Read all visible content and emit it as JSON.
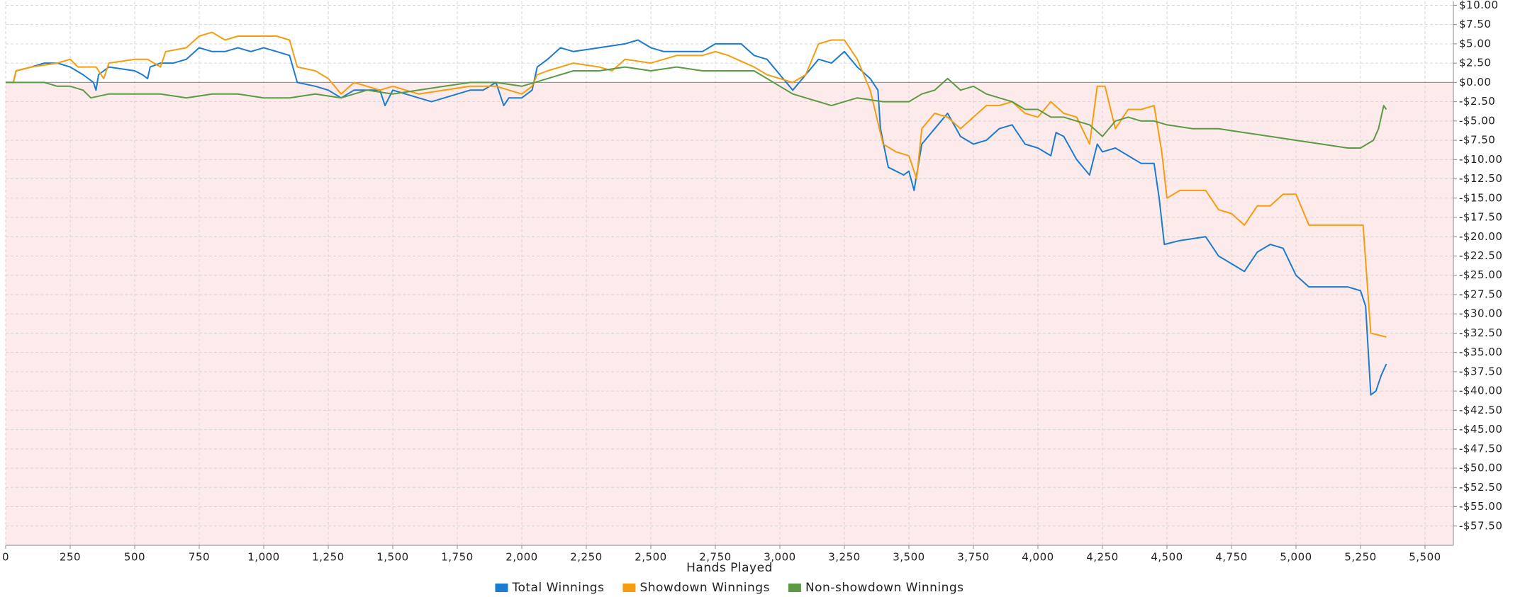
{
  "chart_data": {
    "type": "line",
    "xlabel": "Hands Played",
    "xlim": [
      0,
      5610
    ],
    "xticks": [
      0,
      250,
      500,
      750,
      {
        "value": 1000,
        "label": "1,000"
      },
      {
        "value": 1250,
        "label": "1,250"
      },
      {
        "value": 1500,
        "label": "1,500"
      },
      {
        "value": 1750,
        "label": "1,750"
      },
      {
        "value": 2000,
        "label": "2,000"
      },
      {
        "value": 2250,
        "label": "2,250"
      },
      {
        "value": 2500,
        "label": "2,500"
      },
      {
        "value": 2750,
        "label": "2,750"
      },
      {
        "value": 3000,
        "label": "3,000"
      },
      {
        "value": 3250,
        "label": "3,250"
      },
      {
        "value": 3500,
        "label": "3,500"
      },
      {
        "value": 3750,
        "label": "3,750"
      },
      {
        "value": 4000,
        "label": "4,000"
      },
      {
        "value": 4250,
        "label": "4,250"
      },
      {
        "value": 4500,
        "label": "4,500"
      },
      {
        "value": 4750,
        "label": "4,750"
      },
      {
        "value": 5000,
        "label": "5,000"
      },
      {
        "value": 5250,
        "label": "5,250"
      },
      {
        "value": 5500,
        "label": "5,500"
      }
    ],
    "ylim": [
      -60,
      10.5
    ],
    "yticks": [
      {
        "value": 10,
        "label": "$10.00"
      },
      {
        "value": 7.5,
        "label": "$7.50"
      },
      {
        "value": 5,
        "label": "$5.00"
      },
      {
        "value": 2.5,
        "label": "$2.50"
      },
      {
        "value": 0,
        "label": "$0.00"
      },
      {
        "value": -2.5,
        "label": "-$2.50"
      },
      {
        "value": -5,
        "label": "-$5.00"
      },
      {
        "value": -7.5,
        "label": "-$7.50"
      },
      {
        "value": -10,
        "label": "-$10.00"
      },
      {
        "value": -12.5,
        "label": "-$12.50"
      },
      {
        "value": -15,
        "label": "-$15.00"
      },
      {
        "value": -17.5,
        "label": "-$17.50"
      },
      {
        "value": -20,
        "label": "-$20.00"
      },
      {
        "value": -22.5,
        "label": "-$22.50"
      },
      {
        "value": -25,
        "label": "-$25.00"
      },
      {
        "value": -27.5,
        "label": "-$27.50"
      },
      {
        "value": -30,
        "label": "-$30.00"
      },
      {
        "value": -32.5,
        "label": "-$32.50"
      },
      {
        "value": -35,
        "label": "-$35.00"
      },
      {
        "value": -37.5,
        "label": "-$37.50"
      },
      {
        "value": -40,
        "label": "-$40.00"
      },
      {
        "value": -42.5,
        "label": "-$42.50"
      },
      {
        "value": -45,
        "label": "-$45.00"
      },
      {
        "value": -47.5,
        "label": "-$47.50"
      },
      {
        "value": -50,
        "label": "-$50.00"
      },
      {
        "value": -52.5,
        "label": "-$52.50"
      },
      {
        "value": -55,
        "label": "-$55.00"
      },
      {
        "value": -57.5,
        "label": "-$57.50"
      }
    ],
    "grid": true,
    "legend": "bottom",
    "series": [
      {
        "name": "Total Winnings",
        "color": "#1a7bd0",
        "x": [
          0,
          30,
          40,
          100,
          150,
          200,
          250,
          300,
          340,
          350,
          360,
          400,
          500,
          530,
          550,
          560,
          600,
          650,
          700,
          750,
          800,
          850,
          900,
          950,
          1000,
          1050,
          1100,
          1130,
          1200,
          1250,
          1300,
          1350,
          1450,
          1470,
          1500,
          1600,
          1650,
          1700,
          1800,
          1850,
          1900,
          1930,
          1950,
          2000,
          2040,
          2060,
          2100,
          2150,
          2200,
          2300,
          2400,
          2450,
          2500,
          2550,
          2600,
          2700,
          2750,
          2800,
          2850,
          2900,
          2950,
          3000,
          3050,
          3100,
          3150,
          3200,
          3250,
          3300,
          3350,
          3380,
          3390,
          3420,
          3480,
          3500,
          3520,
          3550,
          3600,
          3650,
          3700,
          3750,
          3800,
          3850,
          3900,
          3950,
          4000,
          4050,
          4070,
          4100,
          4150,
          4200,
          4230,
          4250,
          4300,
          4350,
          4400,
          4450,
          4470,
          4490,
          4550,
          4650,
          4700,
          4750,
          4800,
          4850,
          4900,
          4950,
          5000,
          5050,
          5100,
          5200,
          5250,
          5270,
          5290,
          5310,
          5330,
          5350
        ],
        "values": [
          0,
          0,
          1.5,
          2,
          2.5,
          2.5,
          2,
          1,
          0,
          -1,
          1,
          2,
          1.5,
          1,
          0.5,
          2,
          2.5,
          2.5,
          3,
          4.5,
          4,
          4,
          4.5,
          4,
          4.5,
          4,
          3.5,
          0,
          -0.5,
          -1,
          -2,
          -1,
          -1,
          -3,
          -1,
          -2,
          -2.5,
          -2,
          -1,
          -1,
          0,
          -3,
          -2,
          -2,
          -1,
          2,
          3,
          4.5,
          4,
          4.5,
          5,
          5.5,
          4.5,
          4,
          4,
          4,
          5,
          5,
          5,
          3.5,
          3,
          1,
          -1,
          1,
          3,
          2.5,
          4,
          2,
          0.5,
          -1,
          -6,
          -11,
          -12,
          -11.5,
          -14,
          -8,
          -6,
          -4,
          -7,
          -8,
          -7.5,
          -6,
          -5.5,
          -8,
          -8.5,
          -9.5,
          -6.5,
          -7,
          -10,
          -12,
          -8,
          -9,
          -8.5,
          -9.5,
          -10.5,
          -10.5,
          -15,
          -21,
          -20.5,
          -20,
          -22.5,
          -23.5,
          -24.5,
          -22,
          -21,
          -21.5,
          -25,
          -26.5,
          -26.5,
          -26.5,
          -27,
          -29,
          -40.5,
          -40,
          -38,
          -36.5
        ]
      },
      {
        "name": "Showdown Winnings",
        "color": "#f59d0f",
        "x": [
          0,
          30,
          40,
          100,
          200,
          250,
          280,
          350,
          380,
          400,
          500,
          550,
          600,
          620,
          700,
          750,
          800,
          850,
          900,
          1000,
          1050,
          1100,
          1130,
          1200,
          1250,
          1300,
          1350,
          1450,
          1500,
          1600,
          1700,
          1800,
          1900,
          2000,
          2040,
          2060,
          2100,
          2200,
          2300,
          2350,
          2400,
          2500,
          2600,
          2700,
          2750,
          2800,
          2900,
          2950,
          3050,
          3100,
          3150,
          3200,
          3250,
          3280,
          3300,
          3350,
          3400,
          3450,
          3500,
          3530,
          3550,
          3600,
          3650,
          3700,
          3750,
          3800,
          3850,
          3900,
          3950,
          4000,
          4050,
          4100,
          4150,
          4200,
          4230,
          4260,
          4300,
          4350,
          4400,
          4450,
          4480,
          4500,
          4550,
          4650,
          4700,
          4750,
          4800,
          4850,
          4900,
          4950,
          5000,
          5050,
          5100,
          5200,
          5260,
          5290,
          5350
        ],
        "values": [
          0,
          0,
          1.5,
          2,
          2.5,
          3,
          2,
          2,
          0.5,
          2.5,
          3,
          3,
          2,
          4,
          4.5,
          6,
          6.5,
          5.5,
          6,
          6,
          6,
          5.5,
          2,
          1.5,
          0.5,
          -1.5,
          0,
          -1,
          -0.5,
          -1.5,
          -1,
          -0.5,
          -0.5,
          -1.5,
          -0.5,
          1,
          1.5,
          2.5,
          2,
          1.5,
          3,
          2.5,
          3.5,
          3.5,
          4,
          3.5,
          2,
          1,
          0,
          1,
          5,
          5.5,
          5.5,
          4,
          3,
          -1,
          -8,
          -9,
          -9.5,
          -12.5,
          -6,
          -4,
          -4.5,
          -6,
          -4.5,
          -3,
          -3,
          -2.5,
          -4,
          -4.5,
          -2.5,
          -4,
          -4.5,
          -8,
          -0.5,
          -0.5,
          -6,
          -3.5,
          -3.5,
          -3,
          -9,
          -15,
          -14,
          -14,
          -16.5,
          -17,
          -18.5,
          -16,
          -16,
          -14.5,
          -14.5,
          -18.5,
          -18.5,
          -18.5,
          -18.5,
          -32.5,
          -33
        ]
      },
      {
        "name": "Non-showdown Winnings",
        "color": "#5b9a45",
        "x": [
          0,
          100,
          150,
          200,
          250,
          300,
          330,
          400,
          500,
          600,
          700,
          800,
          900,
          1000,
          1100,
          1200,
          1300,
          1400,
          1500,
          1600,
          1700,
          1800,
          1900,
          2000,
          2050,
          2100,
          2200,
          2300,
          2400,
          2500,
          2600,
          2700,
          2800,
          2900,
          2950,
          3000,
          3050,
          3100,
          3150,
          3200,
          3250,
          3300,
          3400,
          3500,
          3550,
          3600,
          3650,
          3700,
          3750,
          3800,
          3850,
          3900,
          3950,
          4000,
          4050,
          4100,
          4150,
          4200,
          4250,
          4300,
          4350,
          4400,
          4450,
          4500,
          4600,
          4700,
          4800,
          4900,
          5000,
          5100,
          5200,
          5250,
          5300,
          5320,
          5340,
          5350
        ],
        "values": [
          0,
          0,
          0,
          -0.5,
          -0.5,
          -1,
          -2,
          -1.5,
          -1.5,
          -1.5,
          -2,
          -1.5,
          -1.5,
          -2,
          -2,
          -1.5,
          -2,
          -1,
          -1.5,
          -1,
          -0.5,
          0,
          0,
          -0.5,
          0,
          0.5,
          1.5,
          1.5,
          2,
          1.5,
          2,
          1.5,
          1.5,
          1.5,
          0.5,
          -0.5,
          -1.5,
          -2,
          -2.5,
          -3,
          -2.5,
          -2,
          -2.5,
          -2.5,
          -1.5,
          -1,
          0.5,
          -1,
          -0.5,
          -1.5,
          -2,
          -2.5,
          -3.5,
          -3.5,
          -4.5,
          -4.5,
          -5,
          -5.5,
          -7,
          -5,
          -4.5,
          -5,
          -5,
          -5.5,
          -6,
          -6,
          -6.5,
          -7,
          -7.5,
          -8,
          -8.5,
          -8.5,
          -7.5,
          -6,
          -3,
          -3.5
        ]
      }
    ]
  }
}
